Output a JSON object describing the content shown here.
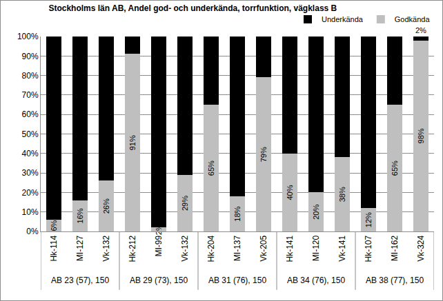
{
  "chart_data": {
    "type": "bar",
    "stacked": true,
    "title": "Stockholms län AB, Andel god- och underkända, torrfunktion, vägklass B",
    "categories": [
      "Hk-114",
      "MI-127",
      "Vk-132",
      "Hk-212",
      "MI-99",
      "Vk-132",
      "Hk-204",
      "MI-137",
      "Vk-205",
      "Hk-141",
      "MI-120",
      "Vk-141",
      "Hk-107",
      "MI-162",
      "Vk-324"
    ],
    "groups": [
      {
        "label": "AB 23 (57), 150",
        "count": 3
      },
      {
        "label": "AB 29 (73), 150",
        "count": 3
      },
      {
        "label": "AB 31 (76), 150",
        "count": 3
      },
      {
        "label": "AB 34 (76), 150",
        "count": 3
      },
      {
        "label": "AB 38 (77), 150",
        "count": 3
      }
    ],
    "series": [
      {
        "name": "Godkända",
        "color": "#bfbfbf",
        "values": [
          6,
          16,
          26,
          91,
          2,
          29,
          65,
          18,
          79,
          40,
          20,
          38,
          12,
          65,
          98
        ],
        "value_labels": [
          "6%",
          "16%",
          "26%",
          "91%",
          "2%",
          "29%",
          "65%",
          "18%",
          "79%",
          "40%",
          "20%",
          "38%",
          "12%",
          "65%",
          "98%"
        ]
      },
      {
        "name": "Underkända",
        "color": "#000000",
        "values": [
          94,
          84,
          74,
          9,
          98,
          71,
          35,
          82,
          21,
          60,
          80,
          62,
          88,
          35,
          2
        ],
        "value_labels": [
          null,
          null,
          null,
          null,
          null,
          null,
          null,
          null,
          null,
          null,
          null,
          null,
          null,
          null,
          "2%"
        ]
      }
    ],
    "data_labels": true,
    "ylim": [
      0,
      100
    ],
    "yticks": [
      {
        "value": 0,
        "label": "0%"
      },
      {
        "value": 10,
        "label": "10%"
      },
      {
        "value": 20,
        "label": "20%"
      },
      {
        "value": 30,
        "label": "30%"
      },
      {
        "value": 40,
        "label": "40%"
      },
      {
        "value": 50,
        "label": "50%"
      },
      {
        "value": 60,
        "label": "60%"
      },
      {
        "value": 70,
        "label": "70%"
      },
      {
        "value": 80,
        "label": "80%"
      },
      {
        "value": 90,
        "label": "90%"
      },
      {
        "value": 100,
        "label": "100%"
      }
    ],
    "grid": true,
    "legend": "top-right"
  }
}
